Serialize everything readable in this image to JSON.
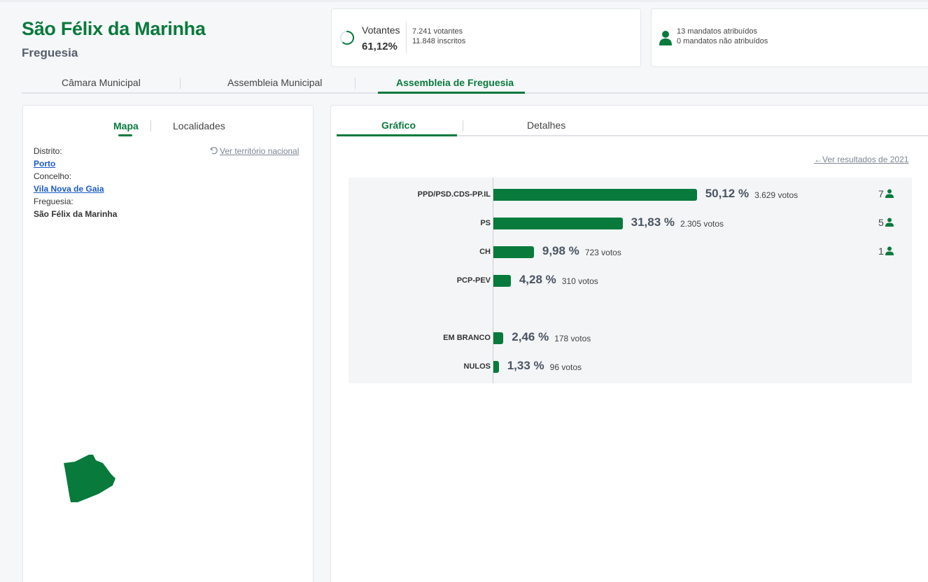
{
  "header": {
    "title": "São Félix da Marinha",
    "subtitle": "Freguesia"
  },
  "votantes_card": {
    "label": "Votantes",
    "percent": "61,12%",
    "votantes": "7.241 votantes",
    "inscritos": "11.848 inscritos",
    "participation_fraction": 0.6112
  },
  "mandatos_card": {
    "atribuidos": "13 mandatos atribuídos",
    "nao_atribuidos": "0 mandatos não atribuídos",
    "icon": "person-icon"
  },
  "main_tabs": [
    {
      "label": "Câmara Municipal"
    },
    {
      "label": "Assembleia Municipal"
    },
    {
      "label": "Assembleia de Freguesia"
    }
  ],
  "left_panel": {
    "tabs": [
      {
        "label": "Mapa"
      },
      {
        "label": "Localidades"
      }
    ],
    "national_link": "Ver território nacional",
    "distrito_label": "Distrito:",
    "distrito_value": "Porto",
    "concelho_label": "Concelho:",
    "concelho_value": "Vila Nova de Gaia",
    "freguesia_label": "Freguesia:",
    "freguesia_value": "São Félix da Marinha"
  },
  "right_panel": {
    "tabs": [
      {
        "label": "Gráfico"
      },
      {
        "label": "Detalhes"
      }
    ],
    "previous_results_link": "Ver resultados de 2021"
  },
  "colors": {
    "brand_green": "#087a3c",
    "link_blue": "#1a5bc6"
  },
  "chart_data": {
    "type": "bar",
    "orientation": "horizontal",
    "categories": [
      "PPD/PSD.CDS-PP.IL",
      "PS",
      "CH",
      "PCP-PEV",
      "EM BRANCO",
      "NULOS"
    ],
    "values": [
      50.12,
      31.83,
      9.98,
      4.28,
      2.46,
      1.33
    ],
    "percent_labels": [
      "50,12 %",
      "31,83 %",
      "9,98 %",
      "4,28 %",
      "2,46 %",
      "1,33 %"
    ],
    "votes_labels": [
      "3.629 votos",
      "2.305 votos",
      "723 votos",
      "310 votos",
      "178 votos",
      "96 votos"
    ],
    "seats": [
      "7",
      "5",
      "1",
      "",
      "",
      ""
    ],
    "xlim": [
      0,
      100
    ]
  }
}
